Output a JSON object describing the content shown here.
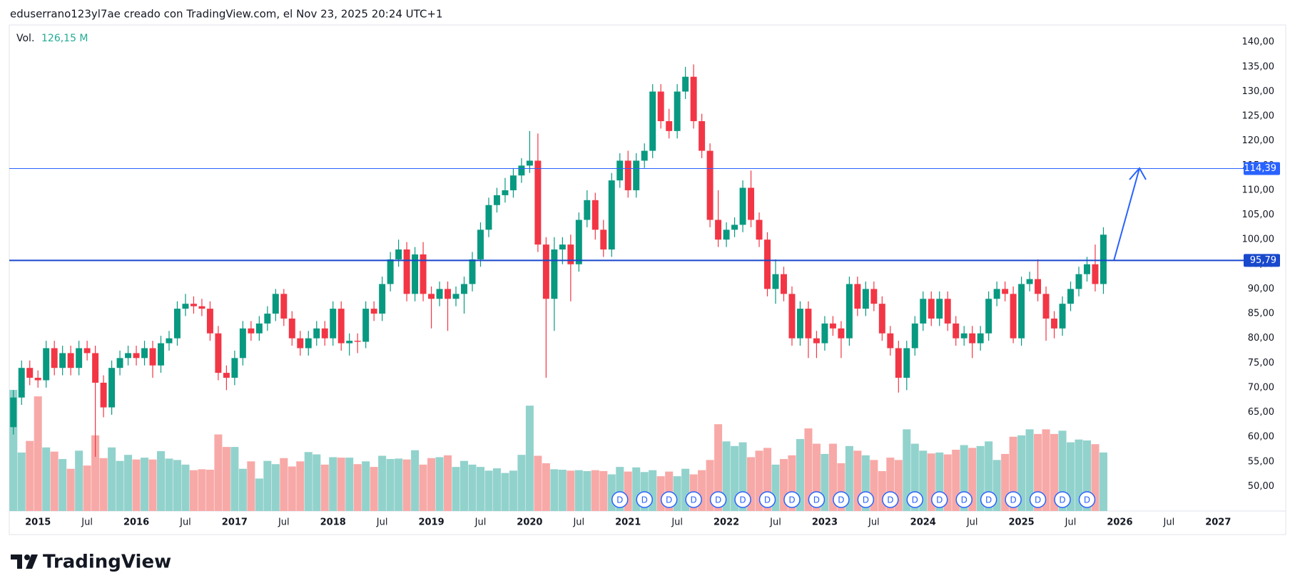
{
  "header": {
    "text": "eduserrano123yl7ae creado con TradingView.com, el Nov 23, 2025 20:24 UTC+1"
  },
  "footer": {
    "logo": "TradingView"
  },
  "chart_data": {
    "type": "candlestick",
    "up_color": "#089981",
    "down_color": "#f23645",
    "volume_up_color": "#92d2cc",
    "volume_down_color": "#f7a9a7",
    "grid": false,
    "x": [
      "2014-10",
      "2014-11",
      "2014-12",
      "2015-01",
      "2015-02",
      "2015-03",
      "2015-04",
      "2015-05",
      "2015-06",
      "2015-07",
      "2015-08",
      "2015-09",
      "2015-10",
      "2015-11",
      "2015-12",
      "2016-01",
      "2016-02",
      "2016-03",
      "2016-04",
      "2016-05",
      "2016-06",
      "2016-07",
      "2016-08",
      "2016-09",
      "2016-10",
      "2016-11",
      "2016-12",
      "2017-01",
      "2017-02",
      "2017-03",
      "2017-04",
      "2017-05",
      "2017-06",
      "2017-07",
      "2017-08",
      "2017-09",
      "2017-10",
      "2017-11",
      "2017-12",
      "2018-01",
      "2018-02",
      "2018-03",
      "2018-04",
      "2018-05",
      "2018-06",
      "2018-07",
      "2018-08",
      "2018-09",
      "2018-10",
      "2018-11",
      "2018-12",
      "2019-01",
      "2019-02",
      "2019-03",
      "2019-04",
      "2019-05",
      "2019-06",
      "2019-07",
      "2019-08",
      "2019-09",
      "2019-10",
      "2019-11",
      "2019-12",
      "2020-01",
      "2020-02",
      "2020-03",
      "2020-04",
      "2020-05",
      "2020-06",
      "2020-07",
      "2020-08",
      "2020-09",
      "2020-10",
      "2020-11",
      "2020-12",
      "2021-01",
      "2021-02",
      "2021-03",
      "2021-04",
      "2021-05",
      "2021-06",
      "2021-07",
      "2021-08",
      "2021-09",
      "2021-10",
      "2021-11",
      "2021-12",
      "2022-01",
      "2022-02",
      "2022-03",
      "2022-04",
      "2022-05",
      "2022-06",
      "2022-07",
      "2022-08",
      "2022-09",
      "2022-10",
      "2022-11",
      "2022-12",
      "2023-01",
      "2023-02",
      "2023-03",
      "2023-04",
      "2023-05",
      "2023-06",
      "2023-07",
      "2023-08",
      "2023-09",
      "2023-10",
      "2023-11",
      "2023-12",
      "2024-01",
      "2024-02",
      "2024-03",
      "2024-04",
      "2024-05",
      "2024-06",
      "2024-07",
      "2024-08",
      "2024-09",
      "2024-10",
      "2024-11",
      "2024-12",
      "2025-01",
      "2025-02",
      "2025-03",
      "2025-04",
      "2025-05",
      "2025-06",
      "2025-07",
      "2025-08",
      "2025-09",
      "2025-10",
      "2025-11"
    ],
    "open": [
      62,
      68,
      74,
      72,
      71.5,
      78,
      74,
      77,
      74,
      78,
      77,
      71,
      66,
      74,
      76,
      77,
      76,
      78,
      74.5,
      79,
      80,
      86,
      87,
      86.5,
      86,
      81,
      73,
      72,
      76,
      82,
      81,
      83,
      85,
      89,
      84,
      80,
      78,
      80,
      82,
      80,
      86,
      79,
      79.5,
      79.3,
      86,
      85,
      91,
      96,
      98,
      89,
      97,
      89,
      88,
      90,
      88,
      89,
      91,
      96,
      102,
      107,
      109,
      110,
      113,
      115,
      116,
      99,
      88,
      98,
      99,
      95,
      104,
      108,
      102,
      98,
      112,
      116,
      110,
      116,
      118,
      130,
      124,
      122,
      130,
      133,
      124,
      118,
      104,
      100,
      102,
      103,
      110.5,
      104,
      100,
      90,
      93,
      89,
      80,
      86,
      80,
      79,
      83,
      82,
      80,
      91,
      86,
      90,
      87,
      81,
      78,
      72,
      78,
      83,
      88,
      84,
      88,
      83,
      80,
      81,
      79,
      81,
      88,
      90,
      89,
      80,
      91,
      92,
      89,
      84,
      82,
      87,
      90,
      93,
      95,
      91
    ],
    "high": [
      69.5,
      75.5,
      75.5,
      73.5,
      79.5,
      79.5,
      78.5,
      78.5,
      79.5,
      79.5,
      78.5,
      72.5,
      75.5,
      77.5,
      78.5,
      78.5,
      79.5,
      79.5,
      80.5,
      81.5,
      87.5,
      89,
      88.5,
      88,
      87.5,
      82.5,
      74.5,
      77.5,
      83.5,
      83.5,
      84.5,
      86.5,
      90,
      90,
      85.5,
      81.5,
      81.5,
      83.5,
      83.5,
      87.5,
      87.5,
      81,
      81,
      87.5,
      87.5,
      92.5,
      97.5,
      100,
      99.5,
      98.5,
      99.5,
      90.5,
      91.5,
      91.5,
      90.5,
      92.5,
      97.5,
      103.5,
      108.5,
      110.5,
      112.5,
      114.5,
      116.5,
      122,
      121.5,
      100.5,
      100.5,
      100.5,
      101,
      105.5,
      110,
      109.5,
      104,
      113.5,
      117.5,
      118,
      117.5,
      119.5,
      131.5,
      131.5,
      126.5,
      131.5,
      135,
      135.5,
      125.5,
      119.5,
      110,
      103.5,
      104.5,
      112,
      114,
      105.5,
      101.5,
      96,
      94.5,
      90.5,
      87.5,
      87.5,
      81.5,
      84.5,
      84.5,
      83.5,
      92.5,
      92.5,
      91.5,
      91.5,
      88.5,
      82.5,
      79.5,
      79.5,
      84.5,
      89.5,
      89.5,
      89.5,
      89.5,
      84.5,
      82.5,
      82.5,
      82.5,
      89.5,
      91.5,
      91.5,
      90.5,
      92.5,
      93.5,
      96,
      90.5,
      85.5,
      88.5,
      91.5,
      94.5,
      96.5,
      99,
      102.5
    ],
    "low": [
      60.5,
      66.5,
      70.5,
      70,
      70,
      72.5,
      72.5,
      72.5,
      72.5,
      75.5,
      56,
      64,
      64.5,
      72.5,
      74.5,
      74.5,
      74.5,
      72,
      73,
      77.5,
      78.5,
      84.5,
      85,
      84.5,
      79.5,
      71.5,
      69.5,
      70.5,
      74.5,
      79.5,
      79.5,
      81.5,
      83.5,
      82.5,
      78.5,
      76.5,
      76.5,
      78.5,
      78.5,
      78.5,
      77.5,
      76.5,
      77,
      78,
      83.5,
      83.5,
      89.5,
      94.5,
      87.5,
      87.5,
      87.5,
      82,
      86.5,
      81.5,
      86.5,
      85,
      89.5,
      94.5,
      100.5,
      105.5,
      107.5,
      108.5,
      111.5,
      113.5,
      97.5,
      72,
      81.5,
      95,
      87.5,
      93.5,
      102.5,
      100,
      96.5,
      96.5,
      110.5,
      108.5,
      108.5,
      114.5,
      116.5,
      122.5,
      120.5,
      120.5,
      128.5,
      122.5,
      116.5,
      102.5,
      98.5,
      98.5,
      100.5,
      101.5,
      102.5,
      98.5,
      88.5,
      87,
      87.5,
      78.5,
      78.5,
      76,
      76,
      77.5,
      80.5,
      76,
      78.5,
      84.5,
      84.5,
      85.5,
      79.5,
      76.5,
      69,
      69.5,
      76.5,
      81.5,
      82.5,
      82.5,
      81.5,
      78.5,
      78.5,
      76,
      77.5,
      79.5,
      86.5,
      87.5,
      79,
      78.5,
      89.5,
      87.5,
      79.5,
      80,
      80.5,
      85.5,
      88.5,
      91.5,
      89.5,
      89
    ],
    "close": [
      68,
      74,
      72,
      71.5,
      78,
      74,
      77,
      74,
      78,
      77,
      71,
      66,
      74,
      76,
      77,
      76,
      78,
      74.5,
      79,
      80,
      86,
      87,
      86.5,
      86,
      81,
      73,
      72,
      76,
      82,
      81,
      83,
      85,
      89,
      84,
      80,
      78,
      80,
      82,
      80,
      86,
      79,
      79.5,
      79.3,
      86,
      85,
      91,
      96,
      98,
      89,
      97,
      89,
      88,
      90,
      88,
      89,
      91,
      96,
      102,
      107,
      109,
      110,
      113,
      115,
      116,
      99,
      88,
      98,
      99,
      95,
      104,
      108,
      102,
      98,
      112,
      116,
      110,
      116,
      118,
      130,
      124,
      122,
      130,
      133,
      124,
      118,
      104,
      100,
      102,
      103,
      110.5,
      104,
      100,
      90,
      93,
      89,
      80,
      86,
      80,
      79,
      83,
      82,
      80,
      91,
      86,
      90,
      87,
      81,
      78,
      72,
      78,
      83,
      88,
      84,
      88,
      83,
      80,
      81,
      79,
      81,
      88,
      90,
      89,
      80,
      91,
      92,
      89,
      84,
      82,
      87,
      90,
      93,
      95,
      91,
      101
    ],
    "volume": [
      261,
      126,
      151,
      247,
      137,
      128,
      112,
      91,
      130,
      98,
      163,
      114,
      137,
      108,
      121,
      111,
      115,
      111,
      129,
      113,
      110,
      100,
      88,
      90,
      89,
      165,
      138,
      138,
      91,
      107,
      70,
      108,
      101,
      114,
      96,
      107,
      127,
      122,
      100,
      116,
      115,
      115,
      101,
      107,
      95,
      119,
      112,
      113,
      111,
      131,
      100,
      114,
      116,
      120,
      95,
      108,
      100,
      95,
      87,
      92,
      82,
      87,
      121,
      227,
      119,
      103,
      90,
      89,
      87,
      88,
      86,
      88,
      86,
      79,
      95,
      85,
      94,
      84,
      88,
      75,
      85,
      75,
      91,
      79,
      88,
      110,
      187,
      150,
      140,
      148,
      116,
      130,
      136,
      100,
      112,
      120,
      155,
      178,
      145,
      123,
      145,
      103,
      140,
      130,
      120,
      110,
      86,
      115,
      110,
      176,
      145,
      130,
      124,
      126,
      122,
      132,
      142,
      136,
      140,
      150,
      110,
      123,
      160,
      163,
      176,
      166,
      176,
      166,
      173,
      148,
      154,
      152,
      144,
      126.15
    ],
    "volume_legend": {
      "name": "Vol.",
      "value_label": "126,15 M"
    },
    "xlim": [
      "2014-10",
      "2027-03"
    ],
    "xticks": [
      {
        "value": "2015-01",
        "label": "2015"
      },
      {
        "value": "2015-07",
        "label": "Jul"
      },
      {
        "value": "2016-01",
        "label": "2016"
      },
      {
        "value": "2016-07",
        "label": "Jul"
      },
      {
        "value": "2017-01",
        "label": "2017"
      },
      {
        "value": "2017-07",
        "label": "Jul"
      },
      {
        "value": "2018-01",
        "label": "2018"
      },
      {
        "value": "2018-07",
        "label": "Jul"
      },
      {
        "value": "2019-01",
        "label": "2019"
      },
      {
        "value": "2019-07",
        "label": "Jul"
      },
      {
        "value": "2020-01",
        "label": "2020"
      },
      {
        "value": "2020-07",
        "label": "Jul"
      },
      {
        "value": "2021-01",
        "label": "2021"
      },
      {
        "value": "2021-07",
        "label": "Jul"
      },
      {
        "value": "2022-01",
        "label": "2022"
      },
      {
        "value": "2022-07",
        "label": "Jul"
      },
      {
        "value": "2023-01",
        "label": "2023"
      },
      {
        "value": "2023-07",
        "label": "Jul"
      },
      {
        "value": "2024-01",
        "label": "2024"
      },
      {
        "value": "2024-07",
        "label": "Jul"
      },
      {
        "value": "2025-01",
        "label": "2025"
      },
      {
        "value": "2025-07",
        "label": "Jul"
      },
      {
        "value": "2026-01",
        "label": "2026"
      },
      {
        "value": "2026-07",
        "label": "Jul"
      },
      {
        "value": "2027-01",
        "label": "2027"
      }
    ],
    "ylim": [
      45,
      143.5
    ],
    "yticks": [
      {
        "value": 50,
        "label": "50,00"
      },
      {
        "value": 55,
        "label": "55,00"
      },
      {
        "value": 60,
        "label": "60,00"
      },
      {
        "value": 65,
        "label": "65,00"
      },
      {
        "value": 70,
        "label": "70,00"
      },
      {
        "value": 75,
        "label": "75,00"
      },
      {
        "value": 80,
        "label": "80,00"
      },
      {
        "value": 85,
        "label": "85,00"
      },
      {
        "value": 90,
        "label": "90,00"
      },
      {
        "value": 95,
        "label": "95,00"
      },
      {
        "value": 100,
        "label": "100,00"
      },
      {
        "value": 105,
        "label": "105,00"
      },
      {
        "value": 110,
        "label": "110,00"
      },
      {
        "value": 115,
        "label": "115,00"
      },
      {
        "value": 120,
        "label": "120,00"
      },
      {
        "value": 125,
        "label": "125,00"
      },
      {
        "value": 130,
        "label": "130,00"
      },
      {
        "value": 135,
        "label": "135,00"
      },
      {
        "value": 140,
        "label": "140,00"
      }
    ],
    "hlines": [
      {
        "value": 114.39,
        "label": "114,39",
        "color": "#2962ff",
        "width": 1
      },
      {
        "value": 95.79,
        "label": "95,79",
        "color": "#1848cc",
        "width": 2
      }
    ],
    "dividends": {
      "label": "D",
      "color": "#2962ff",
      "x": [
        "2020-12",
        "2021-03",
        "2021-06",
        "2021-09",
        "2021-12",
        "2022-03",
        "2022-06",
        "2022-09",
        "2022-12",
        "2023-03",
        "2023-06",
        "2023-09",
        "2023-12",
        "2024-03",
        "2024-06",
        "2024-09",
        "2024-12",
        "2025-03",
        "2025-06",
        "2025-09"
      ]
    }
  }
}
